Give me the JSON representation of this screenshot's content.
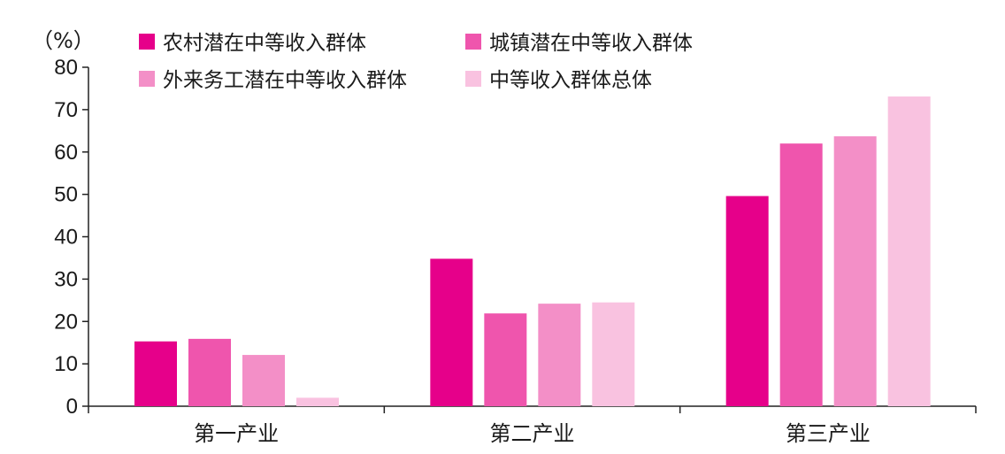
{
  "chart_data": {
    "type": "bar",
    "ylabel": "（%）",
    "ylim": [
      0,
      80
    ],
    "yticks": [
      0,
      10,
      20,
      30,
      40,
      50,
      60,
      70,
      80
    ],
    "categories": [
      "第一产业",
      "第二产业",
      "第三产业"
    ],
    "series": [
      {
        "name": "农村潜在中等收入群体",
        "color": "#e6008a",
        "values": [
          15.3,
          34.8,
          49.6
        ]
      },
      {
        "name": "城镇潜在中等收入群体",
        "color": "#ef55ad",
        "values": [
          15.9,
          21.9,
          62.0
        ]
      },
      {
        "name": "外来务工潜在中等收入群体",
        "color": "#f38fc7",
        "values": [
          12.1,
          24.2,
          63.7
        ]
      },
      {
        "name": "中等收入群体总体",
        "color": "#f9c2e0",
        "values": [
          2.0,
          24.5,
          73.1
        ]
      }
    ],
    "legend_position": "top",
    "grid": false
  }
}
